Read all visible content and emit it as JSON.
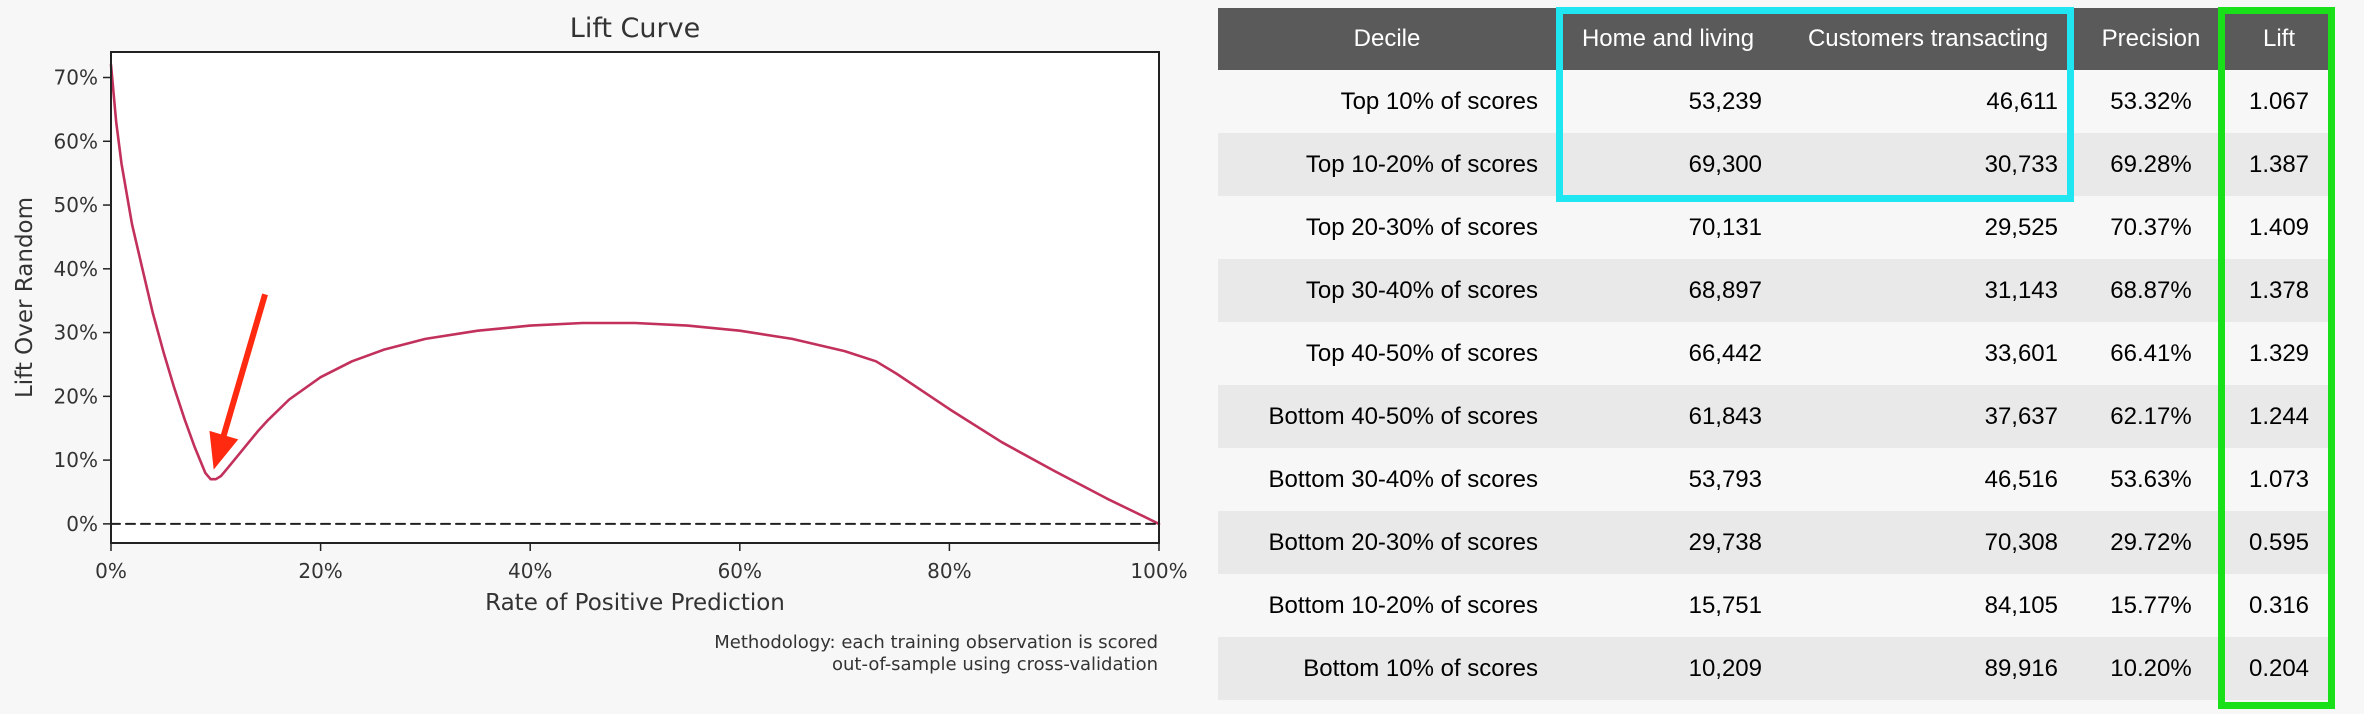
{
  "chart_data": {
    "type": "line",
    "title": "Lift Curve",
    "xlabel": "Rate of Positive Prediction",
    "ylabel": "Lift Over Random",
    "xlim": [
      0,
      1
    ],
    "ylim": [
      -0.03,
      0.74
    ],
    "x_ticks": [
      0,
      0.2,
      0.4,
      0.6,
      0.8,
      1.0
    ],
    "x_tick_labels": [
      "0%",
      "20%",
      "40%",
      "60%",
      "80%",
      "100%"
    ],
    "y_ticks": [
      0,
      0.1,
      0.2,
      0.3,
      0.4,
      0.5,
      0.6,
      0.7
    ],
    "y_tick_labels": [
      "0%",
      "10%",
      "20%",
      "30%",
      "40%",
      "50%",
      "60%",
      "70%"
    ],
    "grid": false,
    "series": [
      {
        "color": "#c2305c",
        "x": [
          0,
          0.005,
          0.01,
          0.02,
          0.03,
          0.04,
          0.05,
          0.06,
          0.07,
          0.08,
          0.09,
          0.095,
          0.1,
          0.105,
          0.11,
          0.12,
          0.13,
          0.14,
          0.15,
          0.17,
          0.2,
          0.23,
          0.26,
          0.3,
          0.35,
          0.4,
          0.45,
          0.5,
          0.55,
          0.6,
          0.65,
          0.7,
          0.73,
          0.75,
          0.8,
          0.85,
          0.9,
          0.95,
          1.0
        ],
        "y": [
          0.72,
          0.63,
          0.565,
          0.47,
          0.4,
          0.33,
          0.27,
          0.215,
          0.165,
          0.12,
          0.08,
          0.07,
          0.07,
          0.075,
          0.085,
          0.105,
          0.125,
          0.145,
          0.163,
          0.195,
          0.23,
          0.255,
          0.273,
          0.29,
          0.303,
          0.311,
          0.315,
          0.315,
          0.311,
          0.303,
          0.29,
          0.271,
          0.255,
          0.235,
          0.18,
          0.128,
          0.083,
          0.04,
          0.0
        ]
      },
      {
        "style": "dashed",
        "color": "#222222",
        "x": [
          0,
          1
        ],
        "y": [
          0,
          0
        ]
      }
    ],
    "annotations": [
      {
        "type": "arrow",
        "color": "#ff2a10",
        "from": [
          0.147,
          0.36
        ],
        "to": [
          0.098,
          0.085
        ]
      }
    ]
  },
  "methodology": {
    "line1": "Methodology: each training observation is scored",
    "line2": "out-of-sample using cross-validation"
  },
  "table": {
    "headers": [
      "Decile",
      "Home and living",
      "Customers transacting",
      "Precision",
      "Lift"
    ],
    "rows": [
      [
        "Top 10% of scores",
        "53,239",
        "46,611",
        "53.32%",
        "1.067"
      ],
      [
        "Top 10-20% of scores",
        "69,300",
        "30,733",
        "69.28%",
        "1.387"
      ],
      [
        "Top 20-30% of scores",
        "70,131",
        "29,525",
        "70.37%",
        "1.409"
      ],
      [
        "Top 30-40% of scores",
        "68,897",
        "31,143",
        "68.87%",
        "1.378"
      ],
      [
        "Top 40-50% of scores",
        "66,442",
        "33,601",
        "66.41%",
        "1.329"
      ],
      [
        "Bottom 40-50% of scores",
        "61,843",
        "37,637",
        "62.17%",
        "1.244"
      ],
      [
        "Bottom 30-40% of scores",
        "53,793",
        "46,516",
        "53.63%",
        "1.073"
      ],
      [
        "Bottom 20-30% of scores",
        "29,738",
        "70,308",
        "29.72%",
        "0.595"
      ],
      [
        "Bottom 10-20% of scores",
        "15,751",
        "84,105",
        "15.77%",
        "0.316"
      ],
      [
        "Bottom 10% of scores",
        "10,209",
        "89,916",
        "10.20%",
        "0.204"
      ]
    ]
  },
  "highlights": {
    "cyan": "#1fe6f0",
    "green": "#19e019"
  }
}
